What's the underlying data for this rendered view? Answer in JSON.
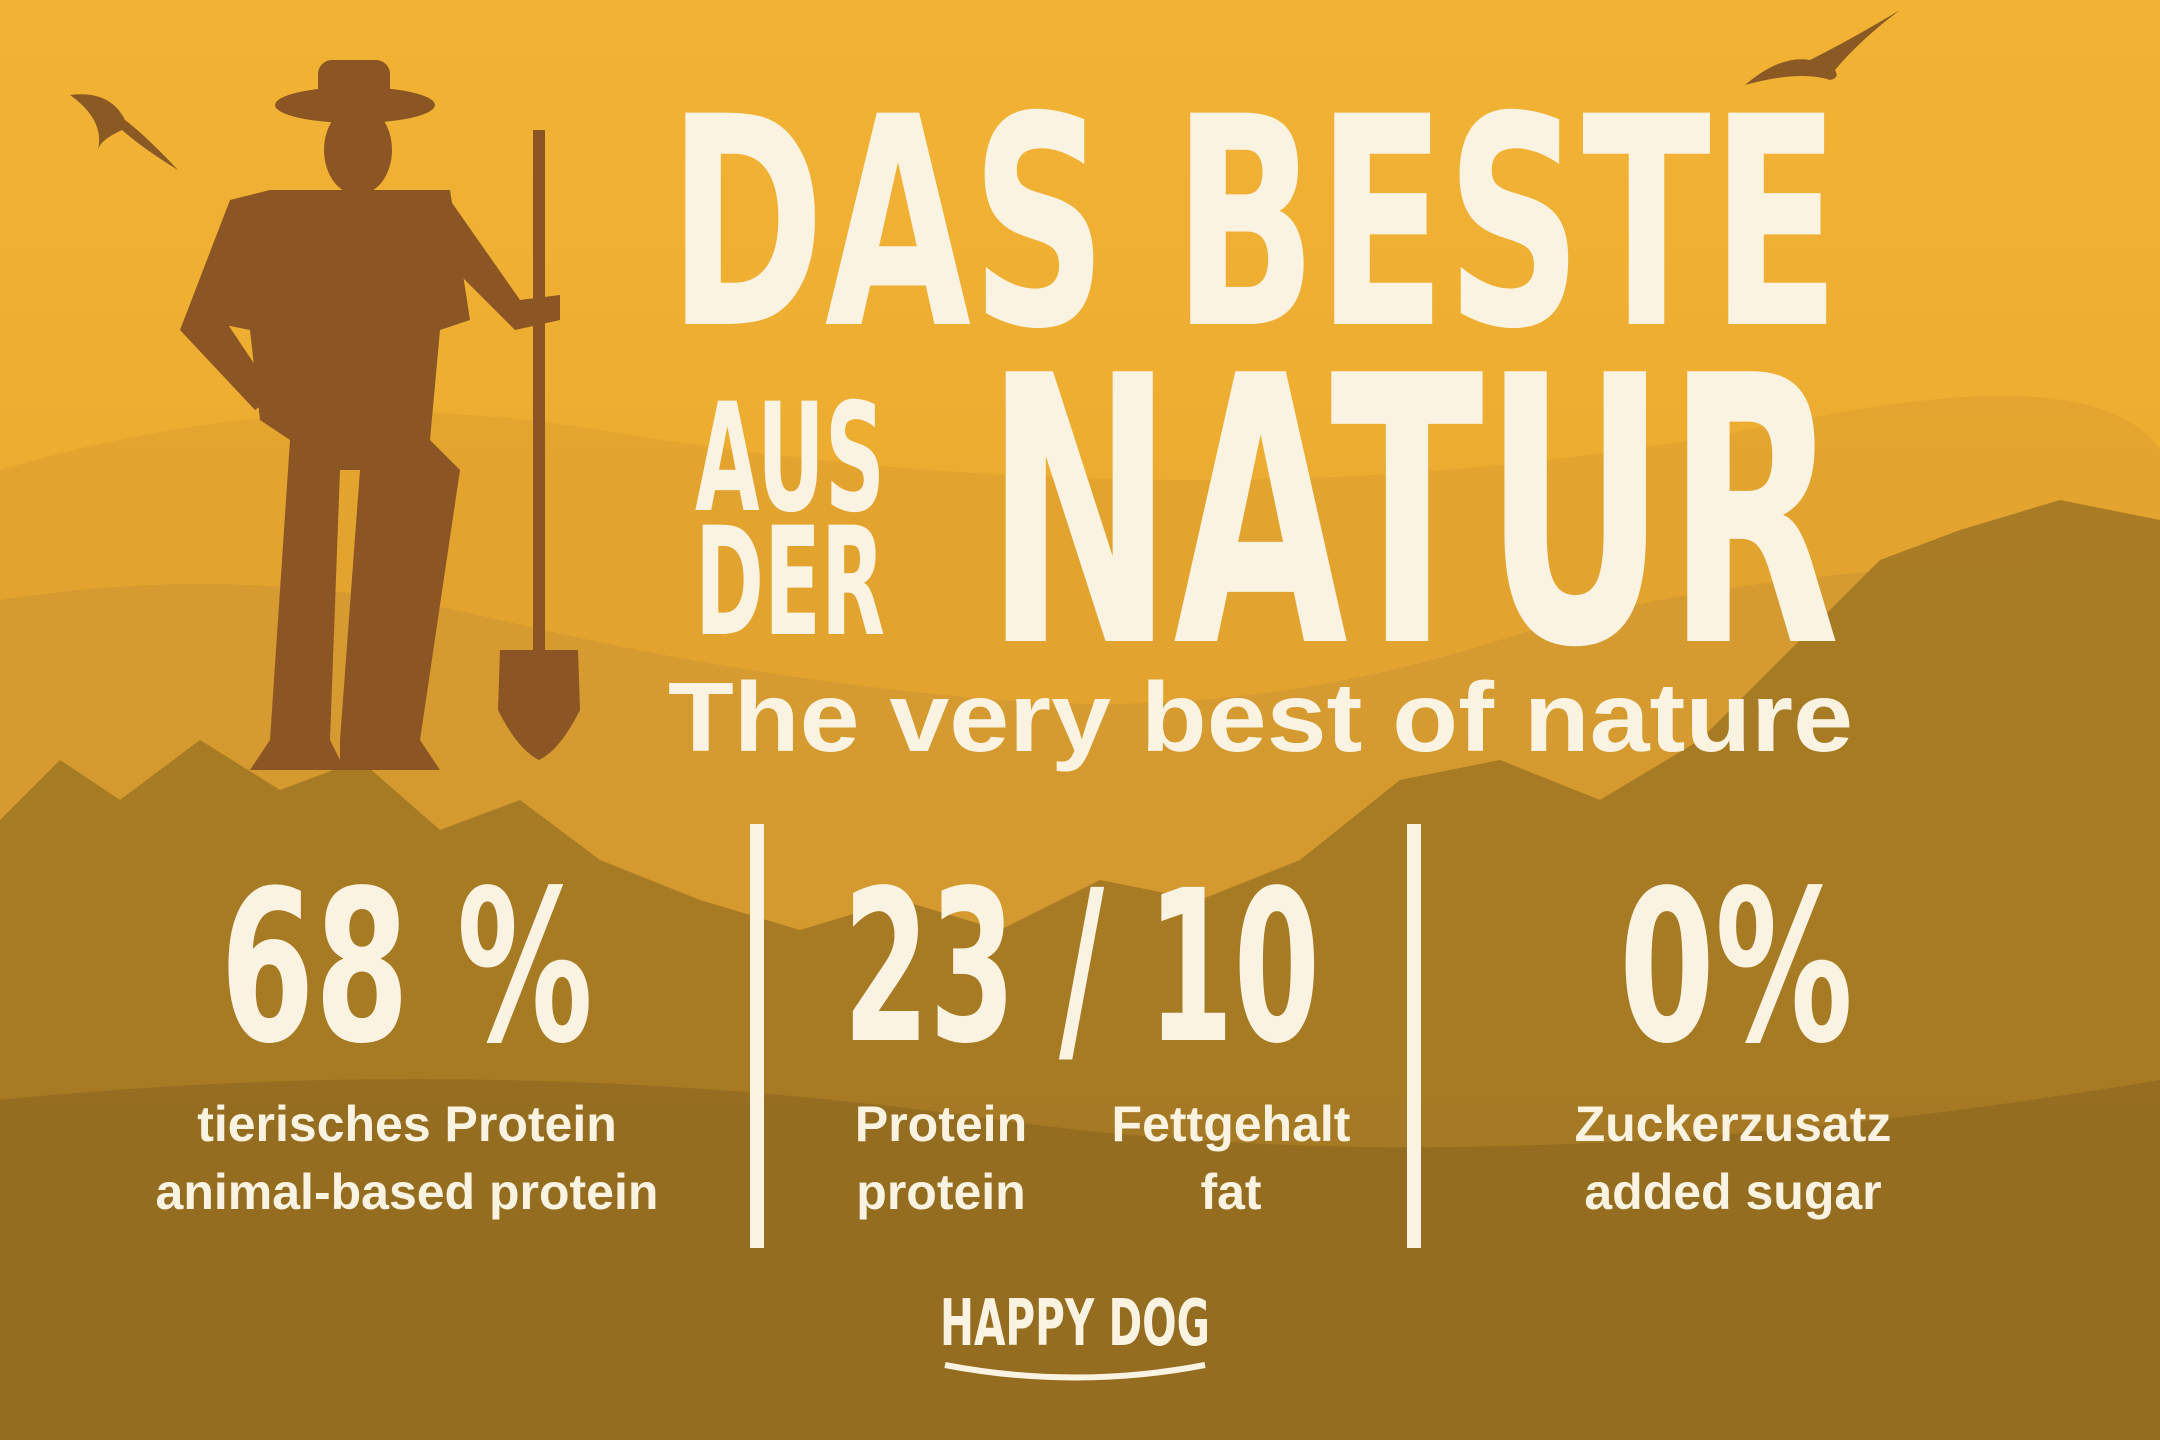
{
  "headline": {
    "line1": "DAS BESTE",
    "line2a": "AUS",
    "line2b": "DER",
    "line2c": "NATUR",
    "subtitle": "The very best of nature"
  },
  "stats": [
    {
      "value": "68 %",
      "labels": [
        {
          "de": "tierisches Protein",
          "en": "animal-based protein"
        }
      ]
    },
    {
      "value": "23 / 10",
      "labels": [
        {
          "de": "Protein",
          "en": "protein"
        },
        {
          "de": "Fettgehalt",
          "en": "fat"
        }
      ]
    },
    {
      "value": "0%",
      "labels": [
        {
          "de": "Zuckerzusatz",
          "en": "added sugar"
        }
      ]
    }
  ],
  "logo": "HAPPY DOG"
}
